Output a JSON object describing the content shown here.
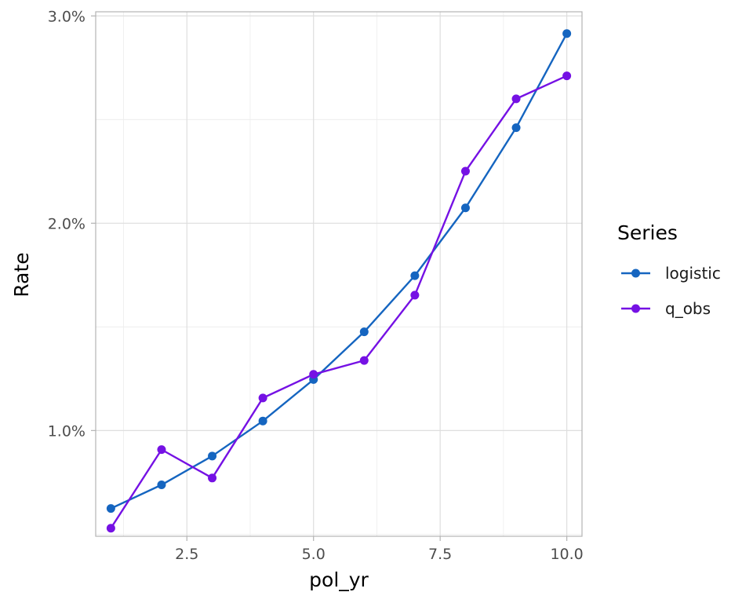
{
  "chart_data": {
    "type": "line",
    "title": "",
    "xlabel": "pol_yr",
    "ylabel": "Rate",
    "x": [
      1,
      2,
      3,
      4,
      5,
      6,
      7,
      8,
      9,
      10
    ],
    "xlim": [
      0.7,
      10.3
    ],
    "ylim": [
      0.0049,
      0.0302
    ],
    "x_ticks": [
      2.5,
      5.0,
      7.5,
      10.0
    ],
    "x_tick_labels": [
      "2.5",
      "5.0",
      "7.5",
      "10.0"
    ],
    "y_ticks": [
      0.01,
      0.02,
      0.03
    ],
    "y_tick_labels": [
      "1.0%",
      "2.0%",
      "3.0%"
    ],
    "grid": true,
    "legend": {
      "title": "Series",
      "position": "right"
    },
    "series": [
      {
        "name": "logistic",
        "color": "#1565C0",
        "values": [
          0.00624,
          0.00738,
          0.00877,
          0.01046,
          0.01246,
          0.01476,
          0.01747,
          0.02074,
          0.02461,
          0.02915
        ]
      },
      {
        "name": "q_obs",
        "color": "#7511E4",
        "values": [
          0.00529,
          0.00908,
          0.00771,
          0.01157,
          0.01271,
          0.01338,
          0.01653,
          0.02251,
          0.026,
          0.02711
        ]
      }
    ]
  }
}
